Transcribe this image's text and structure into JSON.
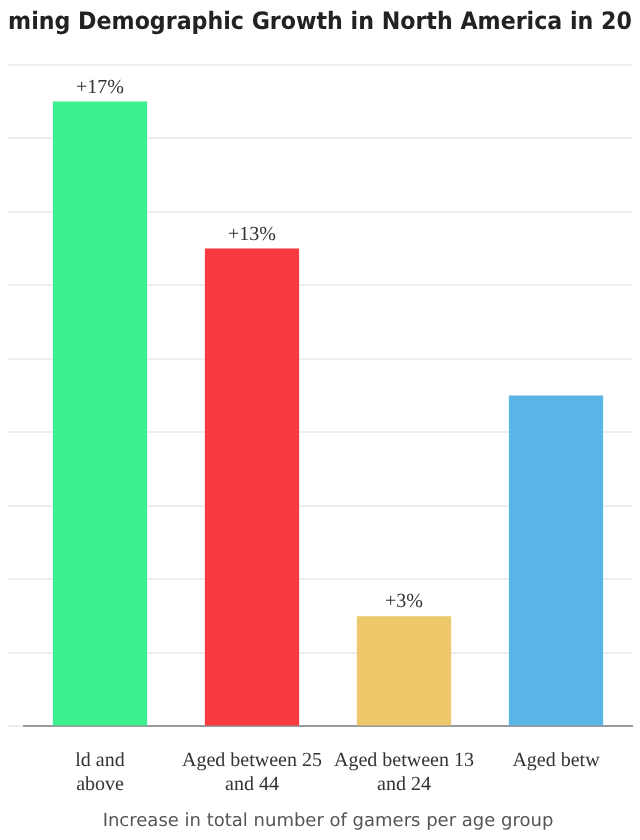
{
  "chart_data": {
    "type": "bar",
    "title": "ming Demographic Growth in North America in 20",
    "xlabel": "Increase in total number of gamers per age group",
    "categories": [
      "ld and above",
      "Aged between 25 and 44",
      "Aged between 13 and 24",
      "Aged betw"
    ],
    "values": [
      17,
      13,
      3,
      9
    ],
    "colors": [
      "#3cf08f",
      "#f93a41",
      "#ecc86a",
      "#5ab4e5"
    ],
    "value_labels": [
      "+17%",
      "+13%",
      "+3%",
      null
    ],
    "grid": "y",
    "tick_labels": "x",
    "legend": false
  }
}
